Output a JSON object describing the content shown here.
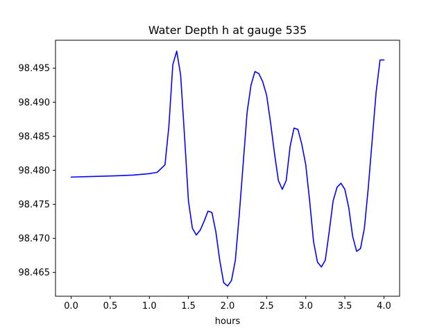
{
  "chart_data": {
    "type": "line",
    "title": "Water Depth h at gauge 535",
    "xlabel": "hours",
    "ylabel": "",
    "xlim": [
      -0.2,
      4.2
    ],
    "ylim": [
      98.4615,
      98.4991
    ],
    "xticks": [
      0.0,
      0.5,
      1.0,
      1.5,
      2.0,
      2.5,
      3.0,
      3.5,
      4.0
    ],
    "xtick_labels": [
      "0.0",
      "0.5",
      "1.0",
      "1.5",
      "2.0",
      "2.5",
      "3.0",
      "3.5",
      "4.0"
    ],
    "yticks": [
      98.465,
      98.47,
      98.475,
      98.48,
      98.485,
      98.49,
      98.495
    ],
    "ytick_labels": [
      "98.465",
      "98.470",
      "98.475",
      "98.480",
      "98.485",
      "98.490",
      "98.495"
    ],
    "grid": false,
    "series": [
      {
        "color": "#0000ff",
        "x": [
          0.0,
          0.3,
          0.6,
          0.8,
          1.0,
          1.1,
          1.2,
          1.25,
          1.3,
          1.35,
          1.4,
          1.45,
          1.5,
          1.55,
          1.6,
          1.65,
          1.7,
          1.75,
          1.8,
          1.85,
          1.9,
          1.95,
          2.0,
          2.05,
          2.1,
          2.15,
          2.2,
          2.25,
          2.3,
          2.35,
          2.4,
          2.45,
          2.5,
          2.55,
          2.6,
          2.65,
          2.7,
          2.75,
          2.8,
          2.85,
          2.9,
          2.95,
          3.0,
          3.05,
          3.1,
          3.15,
          3.2,
          3.25,
          3.3,
          3.35,
          3.4,
          3.45,
          3.5,
          3.55,
          3.6,
          3.65,
          3.7,
          3.75,
          3.8,
          3.85,
          3.9,
          3.95,
          4.0
        ],
        "y": [
          98.479,
          98.4791,
          98.4792,
          98.4793,
          98.4795,
          98.4797,
          98.4808,
          98.4865,
          98.4955,
          98.4975,
          98.494,
          98.485,
          98.4755,
          98.4715,
          98.4705,
          98.4712,
          98.4725,
          98.474,
          98.4738,
          98.471,
          98.4668,
          98.4635,
          98.463,
          98.4638,
          98.4668,
          98.4735,
          98.481,
          98.4885,
          98.4925,
          98.4945,
          98.4942,
          98.493,
          98.491,
          98.487,
          98.4825,
          98.4785,
          98.4772,
          98.4785,
          98.4835,
          98.4862,
          98.486,
          98.4838,
          98.4808,
          98.4755,
          98.4695,
          98.4665,
          98.4658,
          98.4668,
          98.471,
          98.4755,
          98.4775,
          98.4781,
          98.4772,
          98.4745,
          98.4703,
          98.4681,
          98.4685,
          98.4715,
          98.4775,
          98.4845,
          98.4915,
          98.4962,
          98.4962
        ]
      }
    ]
  }
}
